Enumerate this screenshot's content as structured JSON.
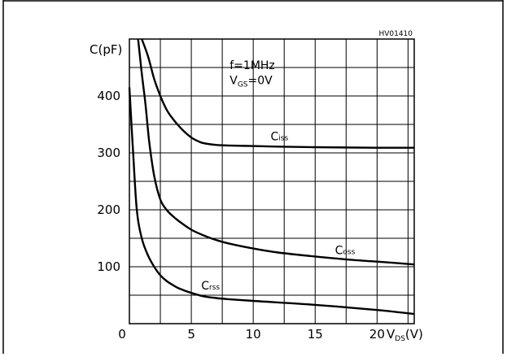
{
  "figure_code": "HV01410",
  "conditions": [
    "f=1MHz",
    "VGS=0V"
  ],
  "chart_data": {
    "type": "line",
    "ylabel": "C(pF)",
    "xlabel": "VDS(V)",
    "xlim": [
      0,
      23
    ],
    "ylim": [
      0,
      500
    ],
    "x_ticks": [
      "0",
      "5",
      "10",
      "15",
      "20"
    ],
    "y_ticks": [
      "100",
      "200",
      "300",
      "400"
    ],
    "grid": true,
    "series": [
      {
        "name": "Ciss",
        "x": [
          1,
          1.5,
          2,
          2.5,
          3,
          3.5,
          4,
          4.5,
          5,
          5.5,
          6,
          7,
          8,
          10,
          12,
          15,
          20,
          23
        ],
        "y": [
          500,
          470,
          430,
          400,
          376,
          360,
          347,
          336,
          327,
          321,
          317,
          314,
          313,
          312,
          311,
          310,
          309,
          309
        ]
      },
      {
        "name": "Coss",
        "x": [
          0.7,
          1,
          1.3,
          1.6,
          2,
          2.5,
          3,
          3.5,
          4,
          5,
          6,
          7,
          8,
          10,
          12,
          15,
          18,
          20,
          23
        ],
        "y": [
          500,
          440,
          385,
          320,
          260,
          218,
          200,
          189,
          180,
          165,
          155,
          147,
          141,
          132,
          125,
          118,
          112,
          109,
          104
        ]
      },
      {
        "name": "Crss",
        "x": [
          0,
          0.3,
          0.6,
          1,
          1.5,
          2,
          2.5,
          3,
          3.5,
          4,
          5,
          6,
          7,
          8,
          10,
          15,
          20,
          23
        ],
        "y": [
          415,
          300,
          200,
          150,
          120,
          100,
          85,
          75,
          68,
          62,
          54,
          48,
          45,
          43,
          40,
          33,
          24,
          17
        ]
      }
    ],
    "series_labels": {
      "Ciss": {
        "main": "C",
        "sub": "iss",
        "x": 11.4,
        "y": 322
      },
      "Coss": {
        "main": "C",
        "sub": "oss",
        "x": 16.6,
        "y": 122
      },
      "Crss": {
        "main": "C",
        "sub": "rss",
        "x": 5.8,
        "y": 60
      }
    },
    "conditions_pos": {
      "x": 8.1,
      "y_line1": 447,
      "y_line2": 421
    }
  }
}
